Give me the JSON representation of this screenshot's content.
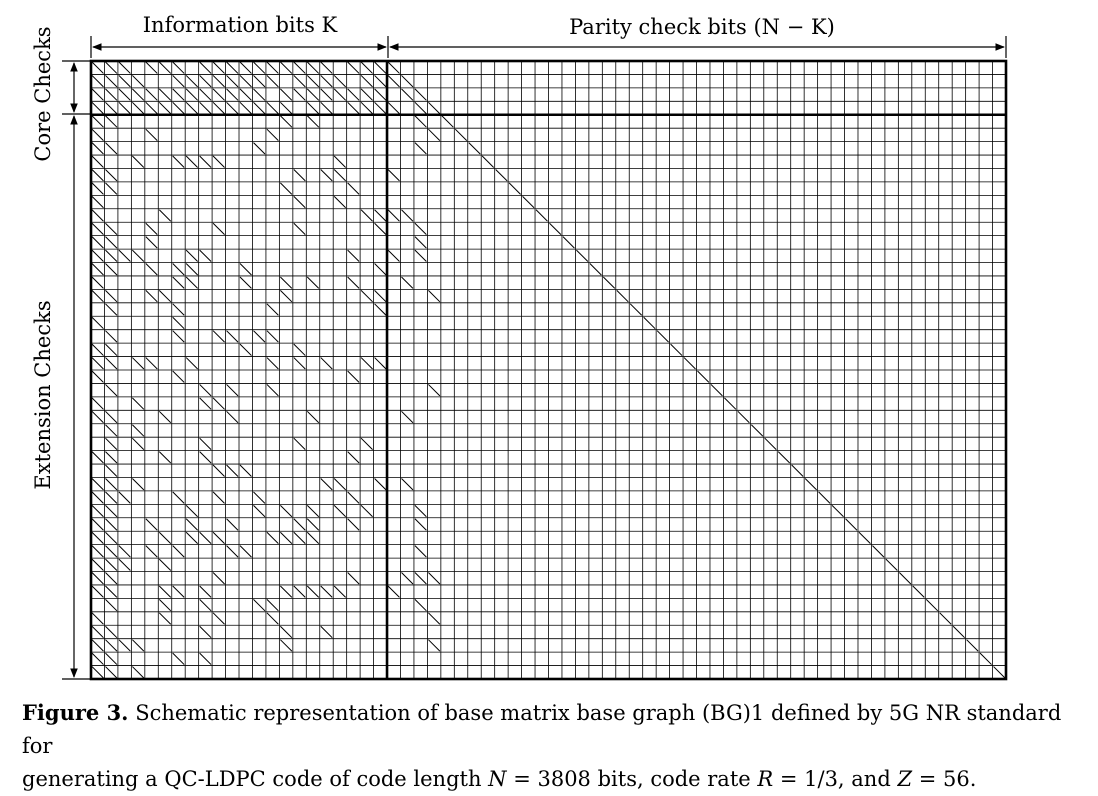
{
  "figure": {
    "top_label_info": "Information bits K",
    "top_label_parity": "Parity check bits (N − K)",
    "side_label_core": "Core Checks",
    "side_label_ext": "Extension Checks",
    "matrix": {
      "rows": 46,
      "cols": 68,
      "info_cols": 22,
      "core_rows": 4
    }
  },
  "caption": {
    "label": "Figure 3.",
    "line1": "Schematic representation of base matrix base graph (BG)1 defined by 5G NR standard for",
    "line2_a": "generating a QC-LDPC code of code length ",
    "var_N": "N",
    "line2_b": " = 3808 bits, code rate ",
    "var_R": "R",
    "line2_c": " = 1/3, and ",
    "var_Z": "Z",
    "line2_d": " = 56."
  },
  "colors": {
    "ink": "#000000",
    "background": "#ffffff"
  }
}
